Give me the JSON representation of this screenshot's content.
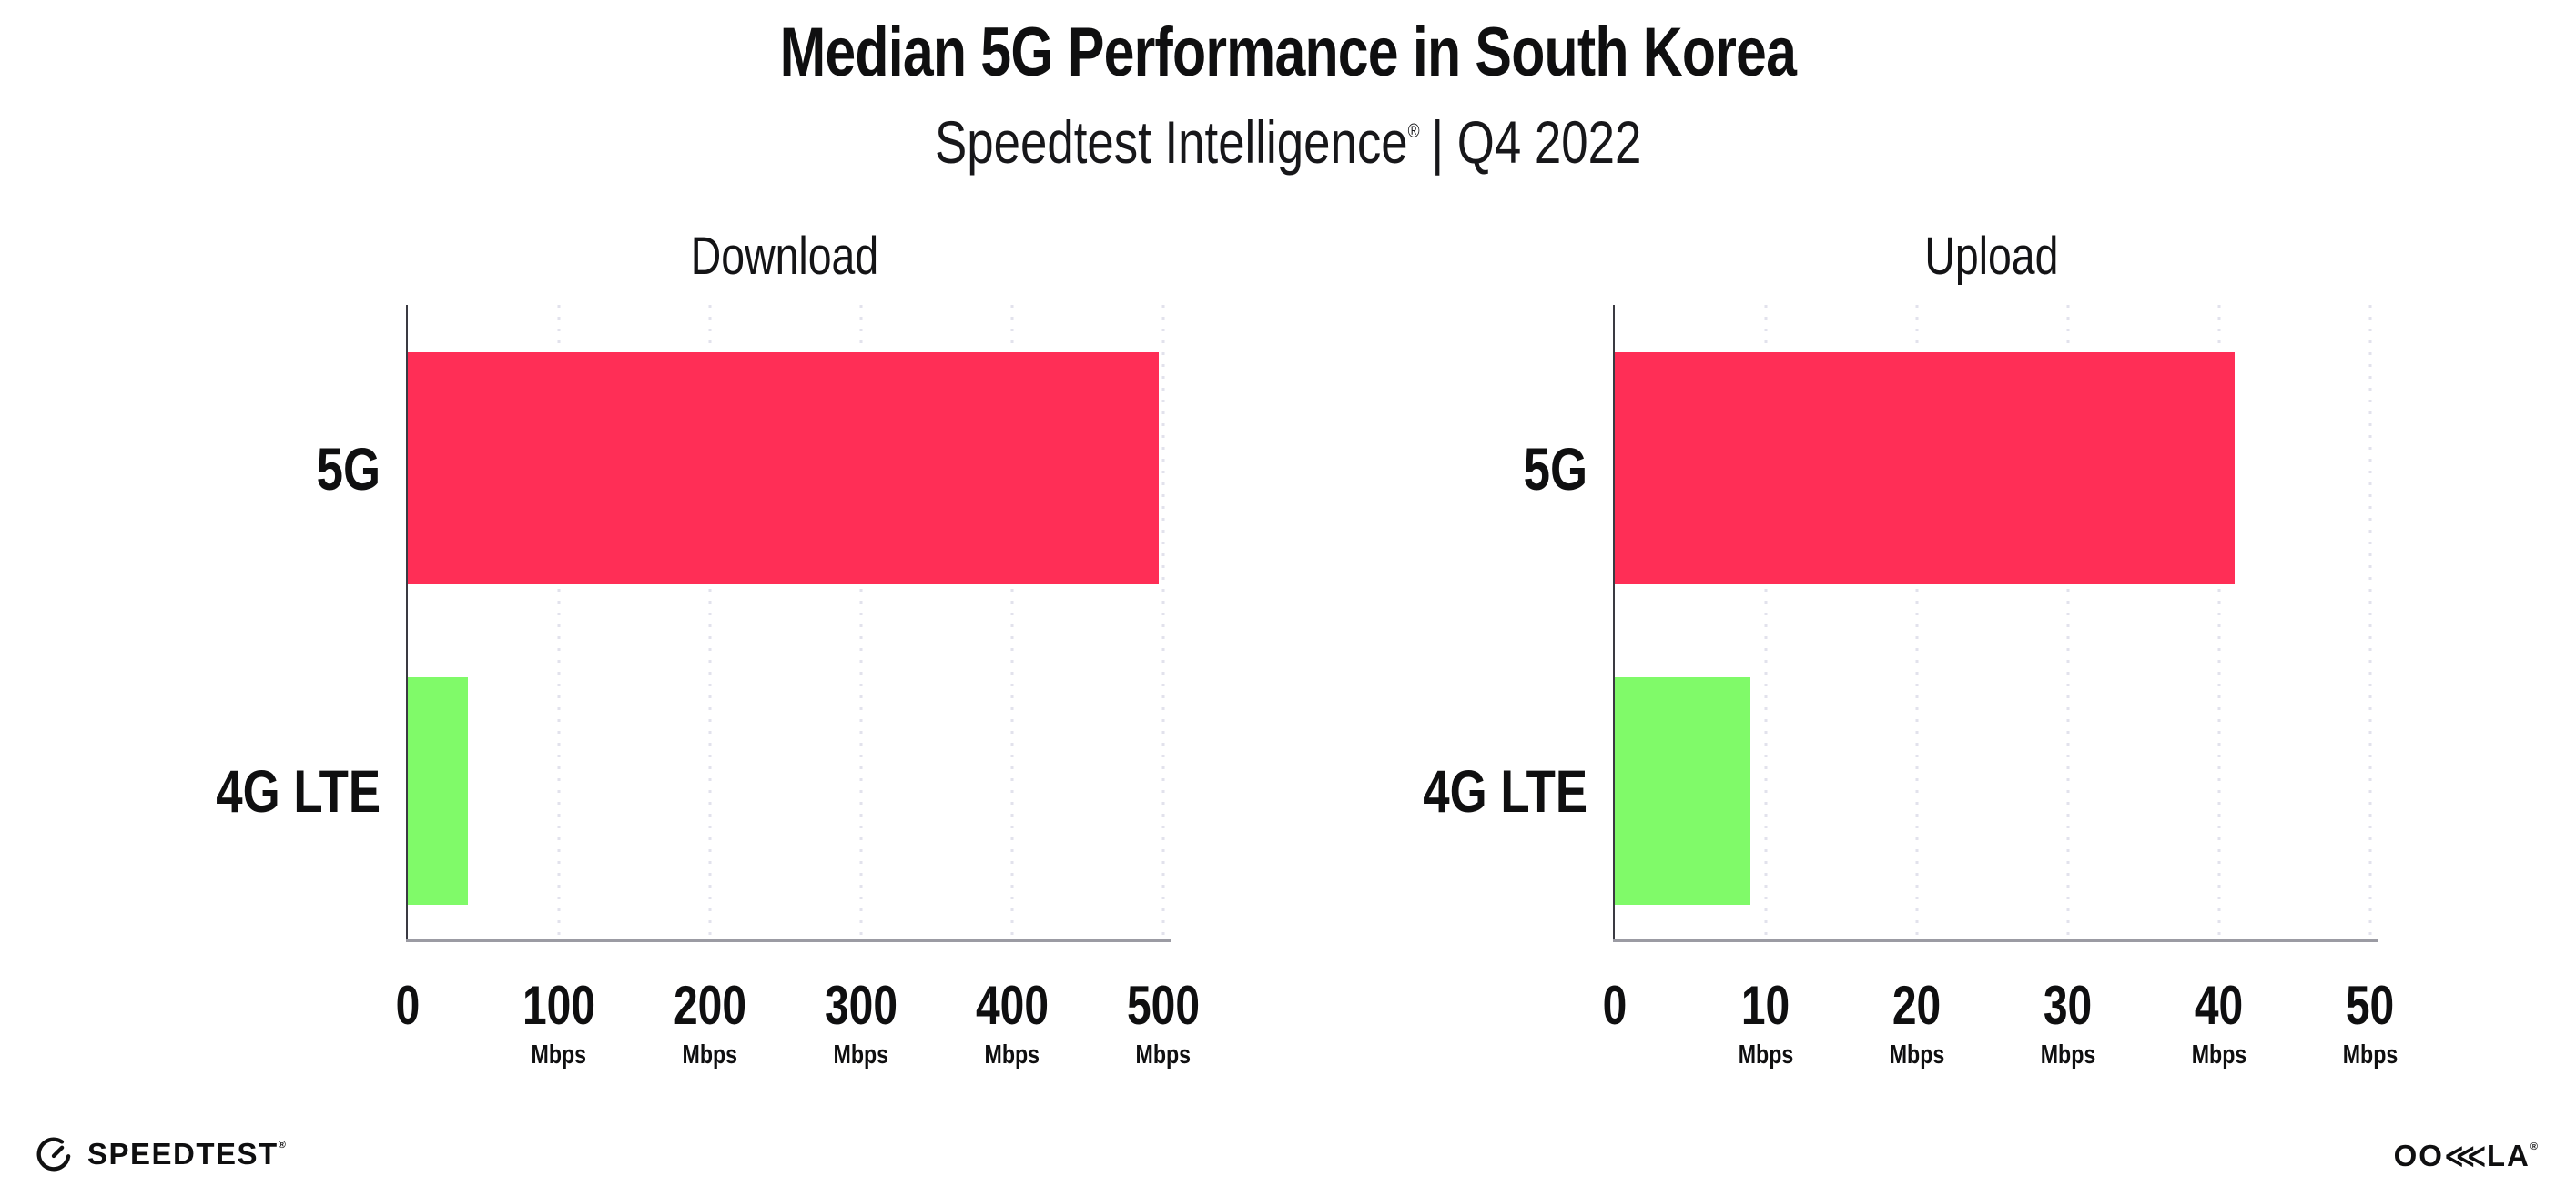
{
  "header": {
    "title": "Median 5G Performance in South Korea",
    "subtitle_brand": "Speedtest Intelligence",
    "subtitle_reg": "®",
    "subtitle_period": "| Q4 2022"
  },
  "footer": {
    "speedtest_label": "SPEEDTEST",
    "speedtest_reg": "®",
    "ookla_label_left": "OO",
    "ookla_label_k": "⋘",
    "ookla_label_right": "LA",
    "ookla_reg": "®"
  },
  "colors": {
    "bar_5g": "#FF2E56",
    "bar_4g_lte": "#80FA69",
    "gridline": "#E2E2EC",
    "y_axis": "#3A3A42",
    "x_axis": "#9B9BA3",
    "text": "#0F0F10"
  },
  "chart_data": [
    {
      "type": "bar",
      "orientation": "horizontal",
      "title": "Download",
      "categories": [
        "5G",
        "4G LTE"
      ],
      "values": [
        497,
        40
      ],
      "unit": "Mbps",
      "xlim": [
        0,
        500
      ],
      "xticks": [
        0,
        100,
        200,
        300,
        400,
        500
      ],
      "xtick_unit": "Mbps",
      "xtick_unit_on_zero": false,
      "bar_colors": [
        "#FF2E56",
        "#80FA69"
      ],
      "grid": "vertical-dotted",
      "legend": "none"
    },
    {
      "type": "bar",
      "orientation": "horizontal",
      "title": "Upload",
      "categories": [
        "5G",
        "4G LTE"
      ],
      "values": [
        41,
        9
      ],
      "unit": "Mbps",
      "xlim": [
        0,
        50
      ],
      "xticks": [
        0,
        10,
        20,
        30,
        40,
        50
      ],
      "xtick_unit": "Mbps",
      "xtick_unit_on_zero": false,
      "bar_colors": [
        "#FF2E56",
        "#80FA69"
      ],
      "grid": "vertical-dotted",
      "legend": "none"
    }
  ]
}
